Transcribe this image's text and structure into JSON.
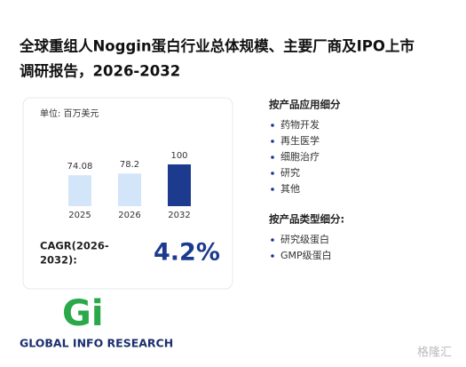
{
  "title": [
    "全球重组人Noggin蛋白行业总体规模、主要厂商及IPO上市",
    "调研报告，2026-2032"
  ],
  "chart_data": {
    "type": "bar",
    "unit": "单位: 百万美元",
    "categories": [
      "2025",
      "2026",
      "2032"
    ],
    "values": [
      74.08,
      78.2,
      100
    ],
    "value_labels": [
      "74.08",
      "78.2",
      "100"
    ],
    "colors": [
      "#d3e6f9",
      "#d3e6f9",
      "#1c3a8e"
    ]
  },
  "cagr": {
    "label": [
      "CAGR(2026-",
      "2032):"
    ],
    "value": "4.2%"
  },
  "segments": [
    {
      "title": "按产品应用细分",
      "items": [
        "药物开发",
        "再生医学",
        "细胞治疗",
        "研究",
        "其他"
      ]
    },
    {
      "title": "按产品类型细分:",
      "items": [
        "研究级蛋白",
        "GMP级蛋白"
      ]
    }
  ],
  "logo": {
    "mark": "Gi",
    "text": "GLOBAL INFO RESEARCH"
  },
  "watermark": "格隆汇"
}
